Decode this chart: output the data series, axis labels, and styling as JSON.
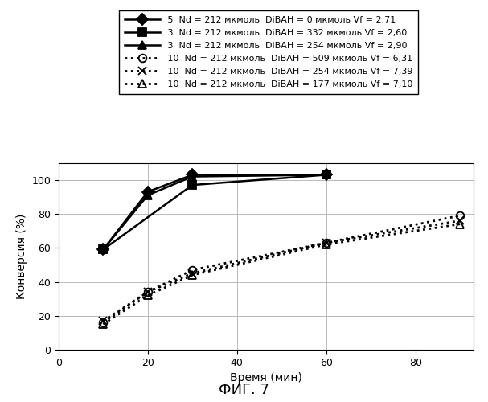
{
  "xlabel": "Время (мин)",
  "ylabel": "Конверсия (%)",
  "fig_caption": "ФИГ. 7",
  "xlim": [
    0,
    93
  ],
  "ylim": [
    0,
    110
  ],
  "xticks": [
    0,
    20,
    40,
    60,
    80
  ],
  "yticks": [
    0,
    20,
    40,
    60,
    80,
    100
  ],
  "series": [
    {
      "label": " 5  Nd = 212 мкмоль  DiBAH = 0 мкмоль Vf = 2,71",
      "x": [
        10,
        20,
        30,
        60
      ],
      "y": [
        59,
        93,
        103,
        103
      ],
      "linestyle": "-",
      "marker": "D",
      "markersize": 7,
      "color": "black",
      "fillstyle": "full",
      "linewidth": 1.8
    },
    {
      "label": " 3  Nd = 212 мкмоль  DiBAH = 332 мкмоль Vf = 2,60",
      "x": [
        10,
        30,
        60
      ],
      "y": [
        59,
        97,
        103
      ],
      "linestyle": "-",
      "marker": "s",
      "markersize": 7,
      "color": "black",
      "fillstyle": "full",
      "linewidth": 1.8
    },
    {
      "label": " 3  Nd = 212 мкмоль  DiBAH = 254 мкмоль Vf = 2,90",
      "x": [
        10,
        20,
        30,
        60
      ],
      "y": [
        59,
        91,
        102,
        103
      ],
      "linestyle": "-",
      "marker": "^",
      "markersize": 7,
      "color": "black",
      "fillstyle": "full",
      "linewidth": 1.8
    },
    {
      "label": " 10  Nd = 212 мкмоль  DiBAH = 509 мкмоль Vf = 6,31",
      "x": [
        10,
        20,
        30,
        60,
        90
      ],
      "y": [
        16,
        34,
        47,
        63,
        79
      ],
      "linestyle": ":",
      "marker": "o",
      "markersize": 7,
      "color": "black",
      "fillstyle": "none",
      "linewidth": 2.0
    },
    {
      "label": " 10  Nd = 212 мкмоль  DiBAH = 254 мкмоль Vf = 7,39",
      "x": [
        10,
        20,
        30,
        60,
        90
      ],
      "y": [
        17,
        34,
        45,
        63,
        76
      ],
      "linestyle": ":",
      "marker": "x",
      "markersize": 7,
      "color": "black",
      "fillstyle": "none",
      "linewidth": 2.0
    },
    {
      "label": " 10  Nd = 212 мкмоль  DiBAH = 177 мкмоль Vf = 7,10",
      "x": [
        10,
        20,
        30,
        60,
        90
      ],
      "y": [
        15,
        32,
        44,
        62,
        74
      ],
      "linestyle": ":",
      "marker": "^",
      "markersize": 7,
      "color": "black",
      "fillstyle": "none",
      "linewidth": 2.0
    }
  ],
  "grid_color": "#b0b0b0",
  "background_color": "#ffffff",
  "legend_fontsize": 8.0,
  "axis_fontsize": 10,
  "tick_fontsize": 9,
  "caption_fontsize": 13
}
